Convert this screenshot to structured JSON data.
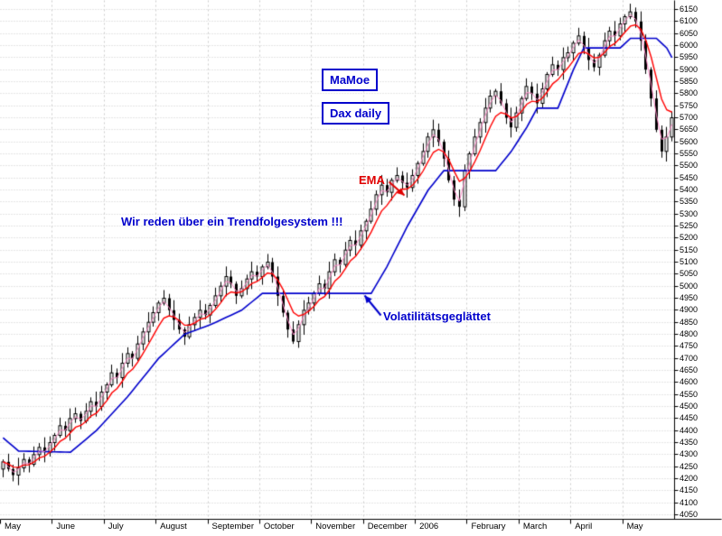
{
  "annotations": {
    "mamoe_box": "MaMoe",
    "dax_box": "Dax daily",
    "ema_label": "EMA",
    "trend_text": "Wir reden über ein Trendfolgesystem !!!",
    "vol_label": "Volatilitätsgeglättet",
    "arrows": [
      {
        "name": "ema-arrow",
        "color": "#e00000",
        "from": [
          430,
          201
        ],
        "to": [
          447,
          216
        ]
      },
      {
        "name": "volatility-arrow",
        "color": "#0000cc",
        "from": [
          421,
          349
        ],
        "to": [
          403,
          327
        ]
      }
    ]
  },
  "colors": {
    "candle": "#000000",
    "ema_red": "#ff0000",
    "ema_pink": "#ff8cc8",
    "volatility_line": "#0000cc",
    "grid": "#cccccc",
    "axis": "#000000",
    "annotation_blue": "#0000cc",
    "annotation_red": "#e00000",
    "background": "#ffffff"
  },
  "chart_data": {
    "type": "candlestick",
    "title": "MaMoe Dax daily",
    "x_tick_labels": [
      "May",
      "June",
      "July",
      "August",
      "September",
      "October",
      "November",
      "December",
      "2006",
      "February",
      "March",
      "April",
      "May"
    ],
    "ylim": [
      4050,
      6150
    ],
    "y_tick_step": 50,
    "grid": true,
    "legend": "none",
    "series": [
      {
        "name": "DAX daily candles",
        "type": "candlestick",
        "closes": [
          4270,
          4240,
          4215,
          4245,
          4280,
          4260,
          4300,
          4330,
          4310,
          4350,
          4380,
          4420,
          4400,
          4450,
          4470,
          4440,
          4480,
          4520,
          4500,
          4560,
          4590,
          4640,
          4620,
          4680,
          4720,
          4700,
          4760,
          4810,
          4850,
          4890,
          4930,
          4950,
          4900,
          4860,
          4820,
          4790,
          4840,
          4870,
          4900,
          4880,
          4920,
          4960,
          5000,
          5040,
          5010,
          4960,
          4990,
          5030,
          5060,
          5040,
          5080,
          5100,
          5040,
          4960,
          4890,
          4820,
          4770,
          4840,
          4900,
          4930,
          4970,
          5010,
          4990,
          5060,
          5110,
          5090,
          5150,
          5190,
          5170,
          5230,
          5270,
          5320,
          5380,
          5420,
          5390,
          5440,
          5460,
          5430,
          5410,
          5460,
          5510,
          5560,
          5620,
          5650,
          5600,
          5530,
          5440,
          5360,
          5330,
          5480,
          5550,
          5620,
          5680,
          5740,
          5790,
          5810,
          5760,
          5700,
          5660,
          5720,
          5780,
          5830,
          5800,
          5760,
          5820,
          5880,
          5920,
          5900,
          5950,
          5970,
          6010,
          6040,
          5990,
          5940,
          5910,
          5960,
          6020,
          6060,
          6040,
          6090,
          6120,
          6140,
          6100,
          6020,
          5900,
          5780,
          5650,
          5560,
          5620,
          5700
        ]
      },
      {
        "name": "EMA",
        "type": "ema_lines",
        "periods": [
          2,
          6
        ],
        "colors": [
          "#ff8cc8",
          "#ff0000"
        ]
      },
      {
        "name": "Volatilitätsgeglättet",
        "type": "line",
        "color": "#0000cc",
        "anchors": [
          [
            0,
            4370
          ],
          [
            3,
            4315
          ],
          [
            13,
            4310
          ],
          [
            18,
            4400
          ],
          [
            24,
            4540
          ],
          [
            30,
            4700
          ],
          [
            35,
            4800
          ],
          [
            40,
            4840
          ],
          [
            46,
            4900
          ],
          [
            50,
            4970
          ],
          [
            71,
            4970
          ],
          [
            74,
            5080
          ],
          [
            78,
            5250
          ],
          [
            82,
            5400
          ],
          [
            85,
            5480
          ],
          [
            95,
            5480
          ],
          [
            98,
            5560
          ],
          [
            101,
            5660
          ],
          [
            103,
            5740
          ],
          [
            107,
            5740
          ],
          [
            110,
            5900
          ],
          [
            112,
            5990
          ],
          [
            119,
            5990
          ],
          [
            121,
            6030
          ],
          [
            126,
            6030
          ],
          [
            128,
            5990
          ],
          [
            129,
            5950
          ]
        ]
      }
    ]
  }
}
